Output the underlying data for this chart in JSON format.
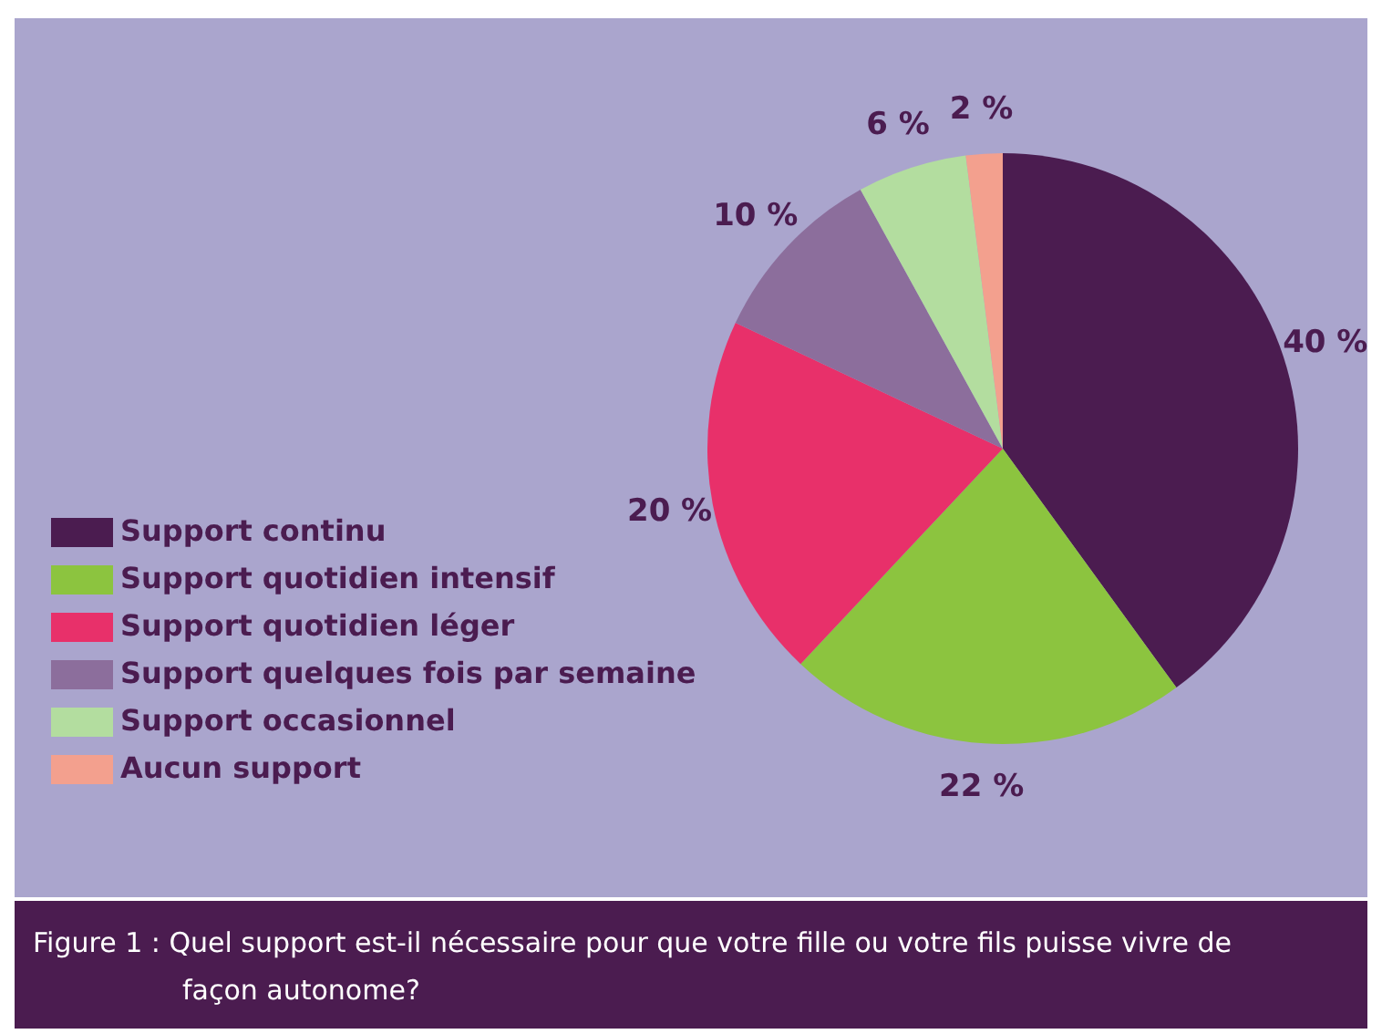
{
  "chart_data": {
    "type": "pie",
    "title": "Figure 1 : Quel support est-il nécessaire pour que votre fille ou votre fils puisse vivre de façon autonome?",
    "categories": [
      "Support continu",
      "Support quotidien intensif",
      "Support quotidien léger",
      "Support quelques fois par semaine",
      "Support occasionnel",
      "Aucun support"
    ],
    "values": [
      40,
      22,
      20,
      10,
      6,
      2
    ],
    "colors": [
      "#4b1c50",
      "#8cc43f",
      "#e8306a",
      "#8c6e9c",
      "#b3dd9f",
      "#f3a08e"
    ],
    "value_labels": [
      "40 %",
      "22 %",
      "20 %",
      "10 %",
      "6 %",
      "2 %"
    ],
    "legend": "bottom left"
  }
}
